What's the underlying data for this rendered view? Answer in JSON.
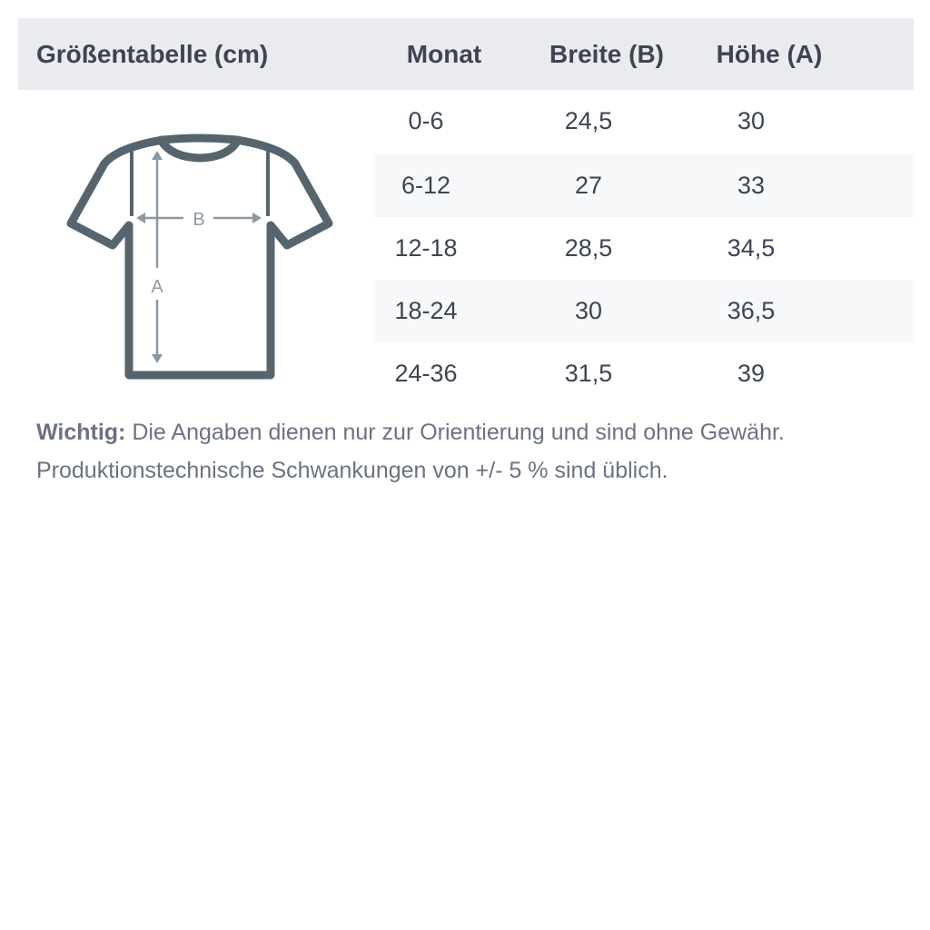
{
  "table": {
    "title": "Größentabelle (cm)",
    "columns": [
      "Monat",
      "Breite (B)",
      "Höhe (A)"
    ],
    "rows": [
      [
        "0-6",
        "24,5",
        "30"
      ],
      [
        "6-12",
        "27",
        "33"
      ],
      [
        "12-18",
        "28,5",
        "34,5"
      ],
      [
        "18-24",
        "30",
        "36,5"
      ],
      [
        "24-36",
        "31,5",
        "39"
      ]
    ]
  },
  "diagram": {
    "label_width": "B",
    "label_height": "A"
  },
  "note": {
    "label": "Wichtig:",
    "line1": " Die Angaben dienen nur zur Orientierung und sind ohne Gewähr.",
    "line2": "Produktionstechnische Schwankungen von +/- 5 % sind üblich."
  },
  "colors": {
    "header_bg": "#eaebee",
    "shirt": "#56656d",
    "arrows": "#8c99a3"
  }
}
